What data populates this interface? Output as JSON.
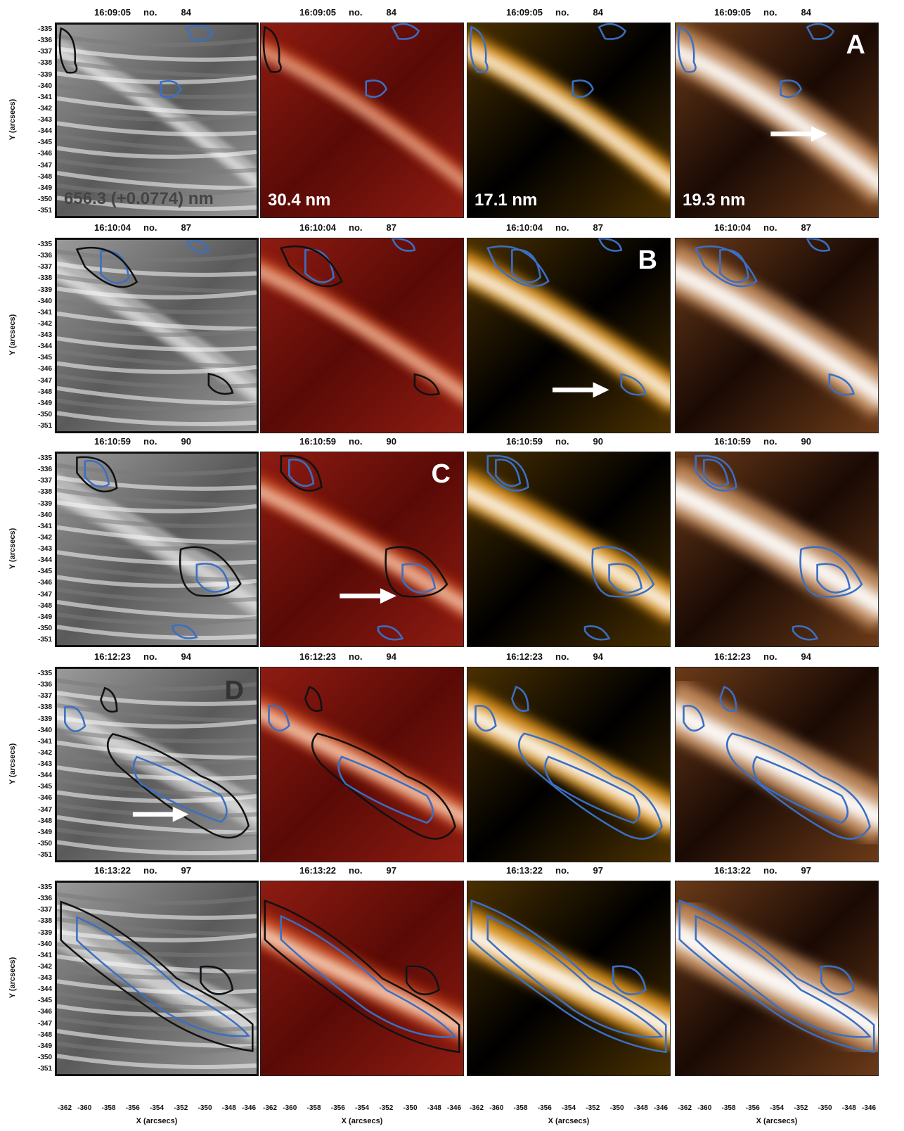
{
  "columns": [
    {
      "id": "halpha",
      "wavelength": "656.3 (+0.0774) nm",
      "wave_dark": true
    },
    {
      "id": "aia304",
      "wavelength": "30.4 nm",
      "wave_dark": false
    },
    {
      "id": "aia171",
      "wavelength": "17.1 nm",
      "wave_dark": false
    },
    {
      "id": "aia193",
      "wavelength": "19.3 nm",
      "wave_dark": false
    }
  ],
  "rows": [
    {
      "time": "16:09:05",
      "no_label": "no.",
      "frame": "84",
      "letter": "A",
      "letter_col": 3
    },
    {
      "time": "16:10:04",
      "no_label": "no.",
      "frame": "87",
      "letter": "B",
      "letter_col": 2
    },
    {
      "time": "16:10:59",
      "no_label": "no.",
      "frame": "90",
      "letter": "C",
      "letter_col": 1
    },
    {
      "time": "16:12:23",
      "no_label": "no.",
      "frame": "94",
      "letter": "D",
      "letter_col": 0
    },
    {
      "time": "16:13:22",
      "no_label": "no.",
      "frame": "97",
      "letter": "",
      "letter_col": -1
    }
  ],
  "y_ticks": [
    "-335",
    "-336",
    "-337",
    "-338",
    "-339",
    "-340",
    "-341",
    "-342",
    "-343",
    "-344",
    "-345",
    "-346",
    "-347",
    "-348",
    "-349",
    "-350",
    "-351"
  ],
  "y_label": "Y (arcsecs)",
  "x_ticks": [
    "-362",
    "-360",
    "-358",
    "-356",
    "-354",
    "-352",
    "-350",
    "-348",
    "-346"
  ],
  "x_label": "X (arcsecs)",
  "colors": {
    "contour_blue": "#3a6fc4",
    "contour_black": "#111111",
    "arrow": "#ffffff"
  }
}
